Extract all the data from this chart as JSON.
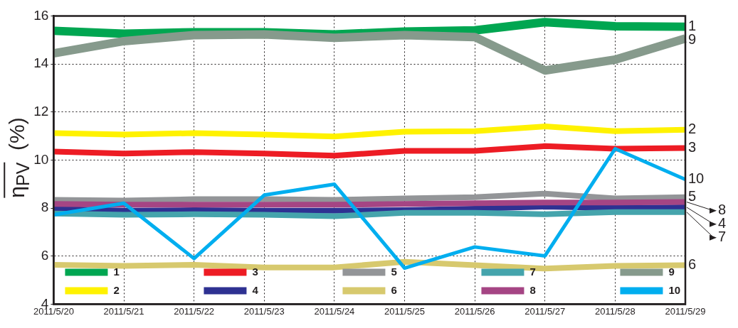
{
  "chart_data": {
    "type": "line",
    "ylabel": "η$_{PV}$ (%)",
    "categories": [
      "2011/5/20",
      "2011/5/21",
      "2011/5/22",
      "2011/5/23",
      "2011/5/24",
      "2011/5/25",
      "2011/5/26",
      "2011/5/27",
      "2011/5/28",
      "2011/5/29"
    ],
    "ylim": [
      4,
      16
    ],
    "yticks": [
      4,
      6,
      8,
      10,
      12,
      14,
      16
    ],
    "grid": true,
    "legend": "bottom left",
    "marker": "none",
    "line_style": "solid",
    "series": [
      {
        "name": "1",
        "color": "#00a651",
        "values": [
          15.38,
          15.26,
          15.32,
          15.32,
          15.23,
          15.35,
          15.4,
          15.74,
          15.57,
          15.55
        ]
      },
      {
        "name": "2",
        "color": "#fff200",
        "values": [
          11.12,
          11.06,
          11.12,
          11.06,
          10.98,
          11.18,
          11.2,
          11.4,
          11.2,
          11.26
        ]
      },
      {
        "name": "3",
        "color": "#ed1c24",
        "values": [
          10.35,
          10.27,
          10.33,
          10.27,
          10.18,
          10.38,
          10.38,
          10.58,
          10.47,
          10.5
        ]
      },
      {
        "name": "4",
        "color": "#2e3192",
        "values": [
          7.97,
          7.89,
          7.91,
          7.89,
          7.89,
          7.91,
          7.97,
          8.06,
          8.0,
          8.03
        ]
      },
      {
        "name": "5",
        "color": "#939598",
        "values": [
          8.34,
          8.31,
          8.37,
          8.37,
          8.34,
          8.4,
          8.45,
          8.6,
          8.4,
          8.45
        ]
      },
      {
        "name": "6",
        "color": "#d7c96e",
        "values": [
          5.64,
          5.59,
          5.64,
          5.53,
          5.53,
          5.76,
          5.62,
          5.48,
          5.59,
          5.62
        ]
      },
      {
        "name": "7",
        "color": "#45a4ac",
        "values": [
          7.77,
          7.72,
          7.74,
          7.72,
          7.66,
          7.8,
          7.8,
          7.74,
          7.83,
          7.83
        ]
      },
      {
        "name": "8",
        "color": "#a54584",
        "values": [
          8.17,
          8.14,
          8.14,
          8.14,
          8.14,
          8.17,
          8.2,
          8.23,
          8.23,
          8.25
        ]
      },
      {
        "name": "9",
        "color": "#869a8c",
        "values": [
          14.44,
          14.95,
          15.2,
          15.23,
          15.09,
          15.2,
          15.12,
          13.73,
          14.18,
          15.06
        ]
      },
      {
        "name": "10",
        "color": "#00aeef",
        "values": [
          7.72,
          8.2,
          5.9,
          8.54,
          8.99,
          5.5,
          6.38,
          6.01,
          10.47,
          9.19
        ]
      }
    ]
  }
}
